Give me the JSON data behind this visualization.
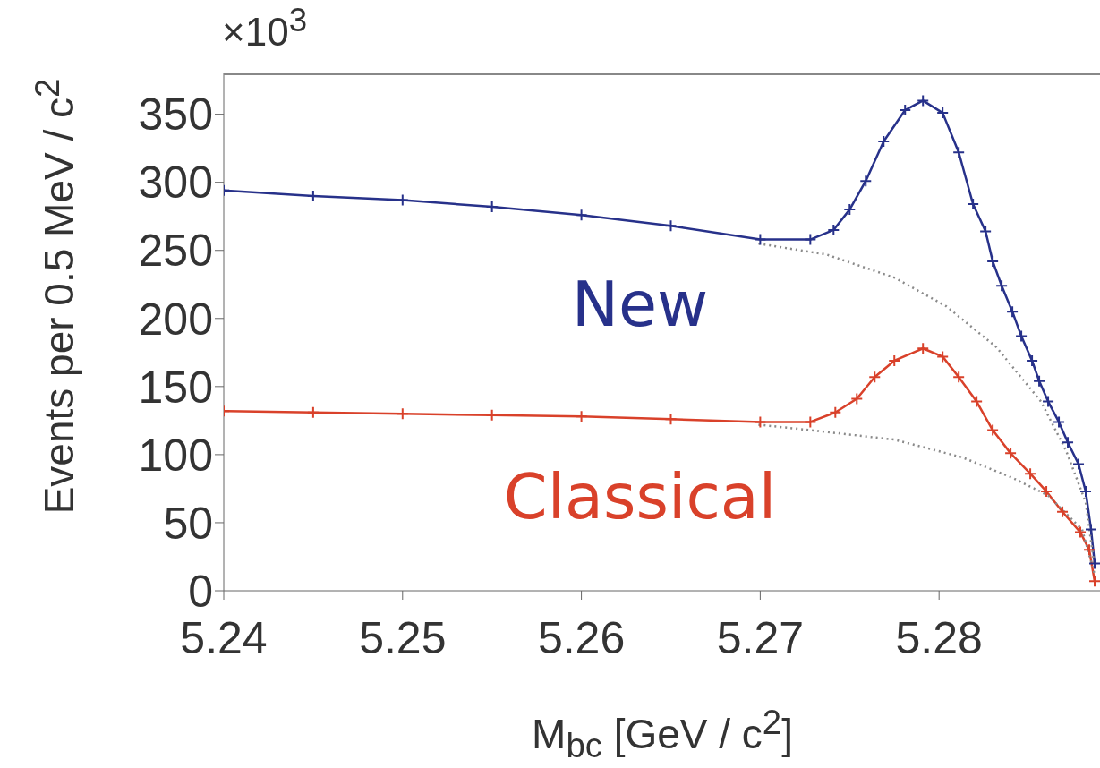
{
  "chart_data": {
    "type": "line",
    "xlabel": "M$_{bc}$ [GeV / c$^{2}$]",
    "ylabel": "Events per 0.5 MeV / c$^{2}$",
    "annotations": [
      "×10$^{3}$"
    ],
    "xlim": [
      5.24,
      5.289
    ],
    "xticks": [
      5.24,
      5.25,
      5.26,
      5.27,
      5.28
    ],
    "ylim": [
      0,
      380
    ],
    "yticks": [
      0,
      50,
      100,
      150,
      200,
      250,
      300,
      350
    ],
    "series": [
      {
        "name": "New",
        "color": "#27318a",
        "marker": "cross",
        "line_style": "solid",
        "x": [
          5.24,
          5.245,
          5.25,
          5.255,
          5.26,
          5.265,
          5.27,
          5.2728,
          5.2741,
          5.275,
          5.2759,
          5.2769,
          5.2781,
          5.2791,
          5.2802,
          5.2811,
          5.2819,
          5.2826,
          5.283,
          5.2835,
          5.2841,
          5.2846,
          5.2852,
          5.2856,
          5.2861,
          5.2867,
          5.2872,
          5.2878,
          5.2882,
          5.2885,
          5.2887
        ],
        "values": [
          294,
          290,
          287,
          282,
          276,
          268,
          258,
          258,
          265,
          280,
          301,
          330,
          353,
          360,
          351,
          322,
          284,
          264,
          242,
          224,
          205,
          187,
          169,
          154,
          139,
          124,
          109,
          93,
          73,
          45,
          20
        ]
      },
      {
        "name": "Classical",
        "color": "#d9412a",
        "marker": "cross",
        "line_style": "solid",
        "x": [
          5.24,
          5.245,
          5.25,
          5.255,
          5.26,
          5.265,
          5.27,
          5.2728,
          5.2742,
          5.2754,
          5.2764,
          5.2775,
          5.2791,
          5.2802,
          5.2811,
          5.2821,
          5.283,
          5.284,
          5.2851,
          5.286,
          5.2869,
          5.2879,
          5.2884,
          5.2887
        ],
        "values": [
          132,
          131,
          130,
          129,
          128,
          126,
          124,
          124,
          131,
          141,
          157,
          169,
          178,
          172,
          157,
          139,
          118,
          101,
          86,
          73,
          58,
          43,
          30,
          7
        ]
      },
      {
        "color": "#8a8a8a",
        "marker": "none",
        "line_style": "dotted",
        "x": [
          5.2699,
          5.2737,
          5.2775,
          5.2804,
          5.2832,
          5.2857,
          5.2871,
          5.2882,
          5.2887
        ],
        "values": [
          255,
          247,
          230,
          209,
          179,
          139,
          103,
          65,
          17
        ]
      },
      {
        "color": "#8a8a8a",
        "marker": "none",
        "line_style": "dotted",
        "x": [
          5.2699,
          5.2728,
          5.2775,
          5.2813,
          5.2841,
          5.2861,
          5.288,
          5.2887
        ],
        "values": [
          122,
          118,
          111,
          98,
          83,
          70,
          45,
          12
        ]
      }
    ]
  }
}
